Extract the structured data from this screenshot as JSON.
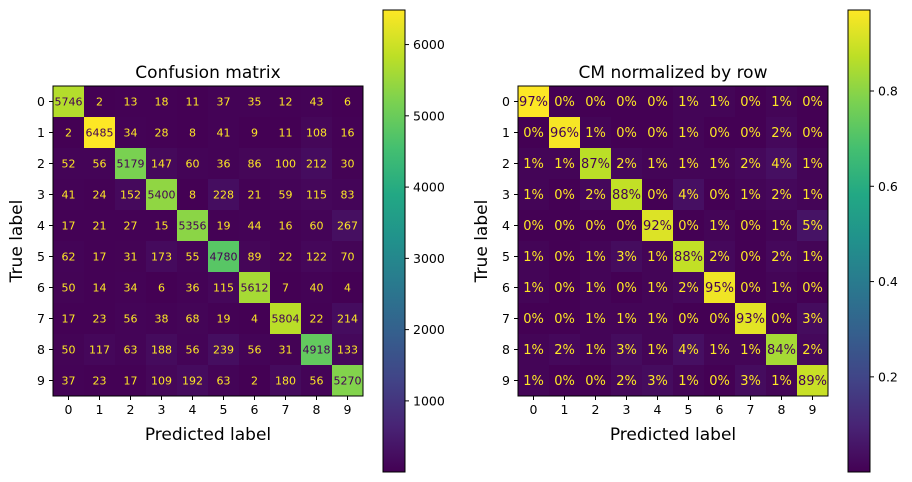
{
  "chart_data": [
    {
      "type": "heatmap",
      "title": "Confusion matrix",
      "xlabel": "Predicted label",
      "ylabel": "True label",
      "x_tick_labels": [
        "0",
        "1",
        "2",
        "3",
        "4",
        "5",
        "6",
        "7",
        "8",
        "9"
      ],
      "y_tick_labels": [
        "0",
        "1",
        "2",
        "3",
        "4",
        "5",
        "6",
        "7",
        "8",
        "9"
      ],
      "colormap": "viridis",
      "value_format": "integer",
      "values": [
        [
          5746,
          2,
          13,
          18,
          11,
          37,
          35,
          12,
          43,
          6
        ],
        [
          2,
          6485,
          34,
          28,
          8,
          41,
          9,
          11,
          108,
          16
        ],
        [
          52,
          56,
          5179,
          147,
          60,
          36,
          86,
          100,
          212,
          30
        ],
        [
          41,
          24,
          152,
          5400,
          8,
          228,
          21,
          59,
          115,
          83
        ],
        [
          17,
          21,
          27,
          15,
          5356,
          19,
          44,
          16,
          60,
          267
        ],
        [
          62,
          17,
          31,
          173,
          55,
          4780,
          89,
          22,
          122,
          70
        ],
        [
          50,
          14,
          34,
          6,
          36,
          115,
          5612,
          7,
          40,
          4
        ],
        [
          17,
          23,
          56,
          38,
          68,
          19,
          4,
          5804,
          22,
          214
        ],
        [
          50,
          117,
          63,
          188,
          56,
          239,
          56,
          31,
          4918,
          133
        ],
        [
          37,
          23,
          17,
          109,
          192,
          63,
          2,
          180,
          56,
          5270
        ]
      ],
      "colorbar": {
        "range": [
          2,
          6485
        ],
        "ticks": [
          1000,
          2000,
          3000,
          4000,
          5000,
          6000
        ],
        "tick_labels": [
          "1000",
          "2000",
          "3000",
          "4000",
          "5000",
          "6000"
        ]
      }
    },
    {
      "type": "heatmap",
      "title": "CM normalized by row",
      "xlabel": "Predicted label",
      "ylabel": "True label",
      "x_tick_labels": [
        "0",
        "1",
        "2",
        "3",
        "4",
        "5",
        "6",
        "7",
        "8",
        "9"
      ],
      "y_tick_labels": [
        "0",
        "1",
        "2",
        "3",
        "4",
        "5",
        "6",
        "7",
        "8",
        "9"
      ],
      "colormap": "viridis",
      "value_format": "percent",
      "values": [
        [
          0.97,
          0.0,
          0.0,
          0.0,
          0.0,
          0.01,
          0.01,
          0.0,
          0.01,
          0.0
        ],
        [
          0.0,
          0.96,
          0.01,
          0.0,
          0.0,
          0.01,
          0.0,
          0.0,
          0.02,
          0.0
        ],
        [
          0.01,
          0.01,
          0.87,
          0.02,
          0.01,
          0.01,
          0.01,
          0.02,
          0.04,
          0.01
        ],
        [
          0.01,
          0.0,
          0.02,
          0.88,
          0.0,
          0.04,
          0.0,
          0.01,
          0.02,
          0.01
        ],
        [
          0.0,
          0.0,
          0.0,
          0.0,
          0.92,
          0.0,
          0.01,
          0.0,
          0.01,
          0.05
        ],
        [
          0.01,
          0.0,
          0.01,
          0.03,
          0.01,
          0.88,
          0.02,
          0.0,
          0.02,
          0.01
        ],
        [
          0.01,
          0.0,
          0.01,
          0.0,
          0.01,
          0.02,
          0.95,
          0.0,
          0.01,
          0.0
        ],
        [
          0.0,
          0.0,
          0.01,
          0.01,
          0.01,
          0.0,
          0.0,
          0.93,
          0.0,
          0.03
        ],
        [
          0.01,
          0.02,
          0.01,
          0.03,
          0.01,
          0.04,
          0.01,
          0.01,
          0.84,
          0.02
        ],
        [
          0.01,
          0.0,
          0.0,
          0.02,
          0.03,
          0.01,
          0.0,
          0.03,
          0.01,
          0.89
        ]
      ],
      "cell_labels": [
        [
          "97%",
          "0%",
          "0%",
          "0%",
          "0%",
          "1%",
          "1%",
          "0%",
          "1%",
          "0%"
        ],
        [
          "0%",
          "96%",
          "1%",
          "0%",
          "0%",
          "1%",
          "0%",
          "0%",
          "2%",
          "0%"
        ],
        [
          "1%",
          "1%",
          "87%",
          "2%",
          "1%",
          "1%",
          "1%",
          "2%",
          "4%",
          "1%"
        ],
        [
          "1%",
          "0%",
          "2%",
          "88%",
          "0%",
          "4%",
          "0%",
          "1%",
          "2%",
          "1%"
        ],
        [
          "0%",
          "0%",
          "0%",
          "0%",
          "92%",
          "0%",
          "1%",
          "0%",
          "1%",
          "5%"
        ],
        [
          "1%",
          "0%",
          "1%",
          "3%",
          "1%",
          "88%",
          "2%",
          "0%",
          "2%",
          "1%"
        ],
        [
          "1%",
          "0%",
          "1%",
          "0%",
          "1%",
          "2%",
          "95%",
          "0%",
          "1%",
          "0%"
        ],
        [
          "0%",
          "0%",
          "1%",
          "1%",
          "1%",
          "0%",
          "0%",
          "93%",
          "0%",
          "3%"
        ],
        [
          "1%",
          "2%",
          "1%",
          "3%",
          "1%",
          "4%",
          "1%",
          "1%",
          "84%",
          "2%"
        ],
        [
          "1%",
          "0%",
          "0%",
          "2%",
          "3%",
          "1%",
          "0%",
          "3%",
          "1%",
          "89%"
        ]
      ],
      "colorbar": {
        "range": [
          0.0003,
          0.97
        ],
        "ticks": [
          0.2,
          0.4,
          0.6,
          0.8
        ],
        "tick_labels": [
          "0.2",
          "0.4",
          "0.6",
          "0.8"
        ]
      }
    }
  ],
  "colors": {
    "text_light": "#fde725",
    "text_dark": "#440154",
    "frame": "#000000"
  }
}
